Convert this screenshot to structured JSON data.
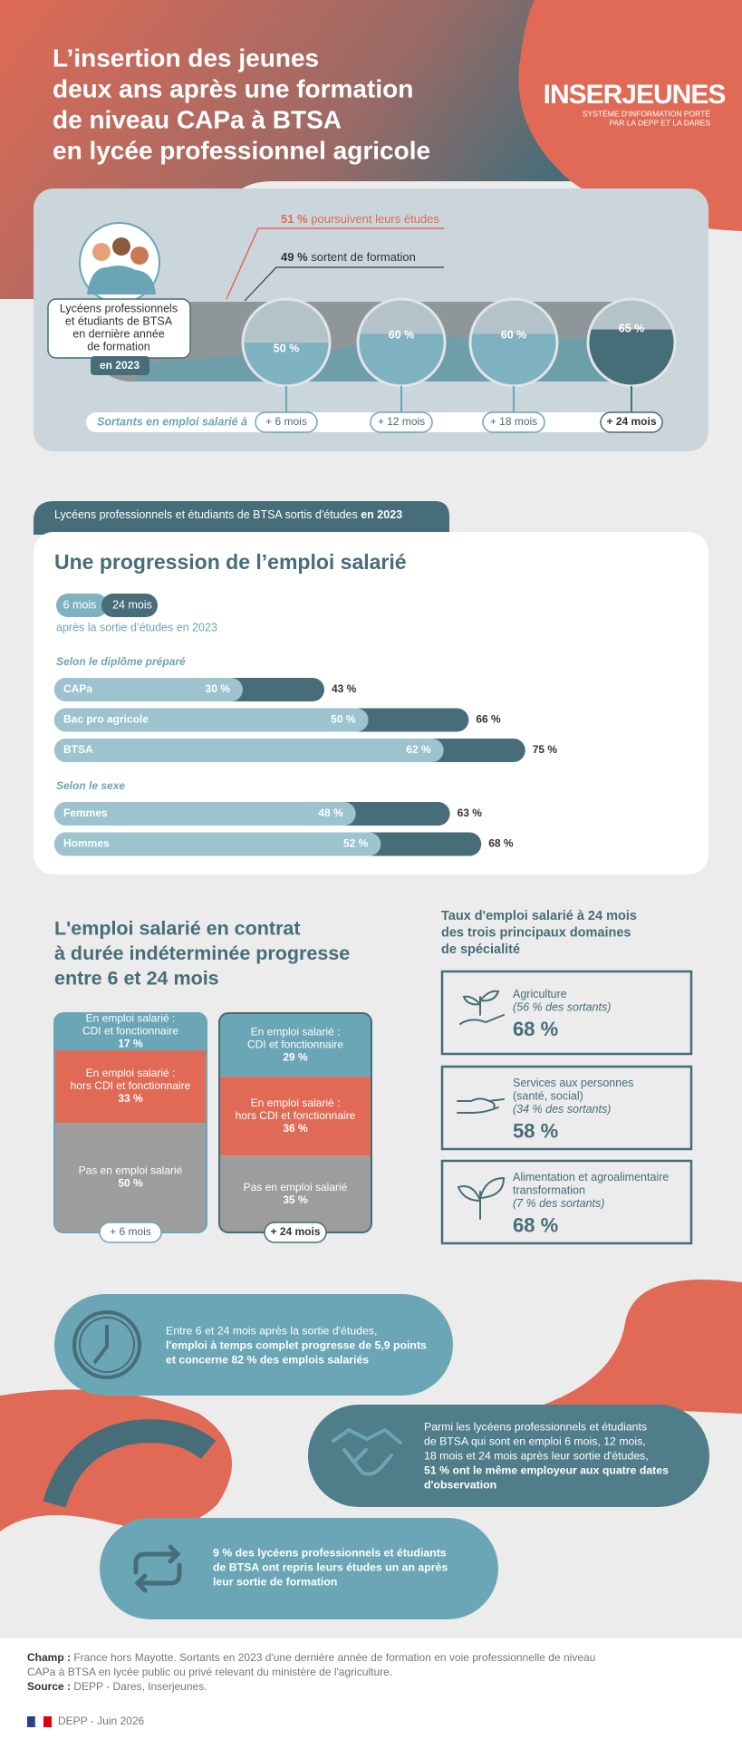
{
  "header": {
    "title_lines": [
      "L’insertion des jeunes",
      "deux ans après une formation",
      "de niveau CAPa à BTSA",
      "en lycée professionnel agricole"
    ],
    "logo": "INSERJEUNES",
    "logo_subtitle": [
      "SYSTÈME D'INFORMATION PORTÉ",
      "PAR LA DEPP ET LA DARES"
    ]
  },
  "overview": {
    "continue": {
      "value_label": "51 %",
      "text": " poursuivent leurs études"
    },
    "exit": {
      "value_label": "49 %",
      "text": " sortent de formation"
    },
    "cohort_lines": [
      "Lycéens professionnels",
      "et étudiants de BTSA",
      "en dernière année",
      "de formation"
    ],
    "cohort_year": "en 2023",
    "axis_label": "Sortants en emploi salarié à",
    "milestones": [
      {
        "label": "+ 6 mois",
        "value": 50,
        "value_label": "50 %"
      },
      {
        "label": "+ 12 mois",
        "value": 60,
        "value_label": "60 %"
      },
      {
        "label": "+ 18 mois",
        "value": 60,
        "value_label": "60 %"
      },
      {
        "label": "+ 24 mois",
        "value": 65,
        "value_label": "65 %"
      }
    ]
  },
  "employment": {
    "tab": "Lycéens professionnels et étudiants de BTSA sortis d'études ",
    "tab_year": "en 2023",
    "title": "Une progression de l’emploi salarié",
    "toggle": [
      "6 mois",
      "24 mois"
    ],
    "subtitle": "après la sortie d’études en 2023",
    "groups": [
      {
        "label": "Selon le diplôme préparé",
        "rows": [
          {
            "label": "CAPa",
            "values": [
              30,
              43
            ],
            "value_labels": [
              "30 %",
              "43 %"
            ]
          },
          {
            "label": "Bac pro agricole",
            "values": [
              50,
              66
            ],
            "value_labels": [
              "50 %",
              "66 %"
            ]
          },
          {
            "label": "BTSA",
            "values": [
              62,
              75
            ],
            "value_labels": [
              "62 %",
              "75 %"
            ]
          }
        ]
      },
      {
        "label": "Selon le sexe",
        "rows": [
          {
            "label": "Femmes",
            "values": [
              48,
              63
            ],
            "value_labels": [
              "48 %",
              "63 %"
            ]
          },
          {
            "label": "Hommes",
            "values": [
              52,
              68
            ],
            "value_labels": [
              "52 %",
              "68 %"
            ]
          }
        ]
      }
    ]
  },
  "cdi": {
    "title_lines": [
      "L'emploi salarié en contrat",
      "à durée indéterminée progresse",
      "entre 6 et 24 mois"
    ],
    "columns": [
      {
        "label": "+ 6 mois",
        "segments": [
          {
            "label_lines": [
              "En emploi salarié :",
              "CDI et fonctionnaire"
            ],
            "value": 17,
            "value_label": "17 %",
            "color": "#6aa6b5"
          },
          {
            "label_lines": [
              "En emploi salarié :",
              "hors CDI et fonctionnaire"
            ],
            "value": 33,
            "value_label": "33 %",
            "color": "#e06a55"
          },
          {
            "label_lines": [
              "Pas en emploi salarié"
            ],
            "value": 50,
            "value_label": "50 %",
            "color": "#9d9d9d"
          }
        ]
      },
      {
        "label": "+ 24 mois",
        "segments": [
          {
            "label_lines": [
              "En emploi salarié :",
              "CDI et fonctionnaire"
            ],
            "value": 29,
            "value_label": "29 %",
            "color": "#6aa6b5"
          },
          {
            "label_lines": [
              "En emploi salarié :",
              "hors CDI et fonctionnaire"
            ],
            "value": 36,
            "value_label": "36 %",
            "color": "#e06a55"
          },
          {
            "label_lines": [
              "Pas en emploi salarié"
            ],
            "value": 35,
            "value_label": "35 %",
            "color": "#9d9d9d"
          }
        ]
      }
    ]
  },
  "domains": {
    "title_lines": [
      "Taux d'emploi salarié à 24 mois",
      "des trois principaux domaines",
      "de spécialité"
    ],
    "items": [
      {
        "name_lines": [
          "Agriculture"
        ],
        "share": "(56 % des sortants)",
        "rate": "68 %"
      },
      {
        "name_lines": [
          "Services aux personnes",
          "(santé, social)"
        ],
        "share": "(34 % des sortants)",
        "rate": "58 %"
      },
      {
        "name_lines": [
          "Alimentation et agroalimentaire",
          "transformation"
        ],
        "share": "(7 % des sortants)",
        "rate": "68 %"
      }
    ]
  },
  "highlights": [
    {
      "lines": [
        {
          "text": "Entre 6 et 24 mois après la sortie d'études,",
          "bold": false
        },
        {
          "text": "l'emploi à temps complet progresse de 5,9 points",
          "bold": true
        },
        {
          "text": "et concerne 82 % des emplois salariés",
          "bold": true
        }
      ]
    },
    {
      "lines": [
        {
          "text": "Parmi les lycéens professionnels et étudiants",
          "bold": false
        },
        {
          "text": "de BTSA qui sont en emploi 6 mois, 12 mois,",
          "bold": false
        },
        {
          "text": "18 mois et 24 mois après leur sortie d'études,",
          "bold": false
        },
        {
          "text": "51 % ont le même employeur aux quatre dates",
          "bold": true
        },
        {
          "text": "d'observation",
          "bold": true
        }
      ]
    },
    {
      "lines": [
        {
          "text": "9 %  des lycéens professionnels et étudiants",
          "bold": true
        },
        {
          "text": "de BTSA ont repris leurs études un an après",
          "bold": true
        },
        {
          "text": "leur sortie de formation",
          "bold": true
        }
      ]
    }
  ],
  "footer": {
    "scope_label": "Champ : ",
    "scope_lines": [
      "France hors Mayotte. Sortants en 2023 d'une dernière année de formation en voie professionnelle de niveau",
      "CAPa à BTSA en lycée public ou privé relevant du ministère de l'agriculture."
    ],
    "source_label": "Source : ",
    "source": "DEPP - Dares, Inserjeunes.",
    "credit": "DEPP - Juin 2026"
  }
}
